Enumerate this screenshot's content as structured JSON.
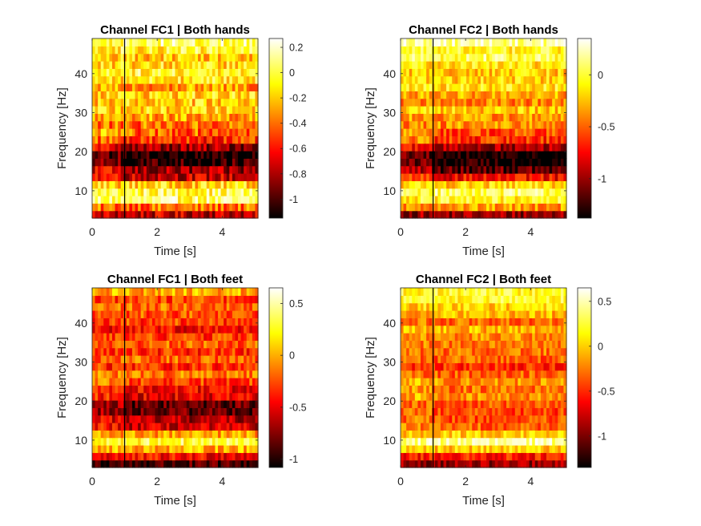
{
  "chart_data": [
    {
      "type": "heatmap",
      "title": "Channel FC1 | Both hands",
      "xlabel": "Time [s]",
      "ylabel": "Frequency [Hz]",
      "xlim": [
        0,
        5.1
      ],
      "ylim": [
        3,
        49
      ],
      "x_ticks": [
        "0",
        "2",
        "4"
      ],
      "y_ticks": [
        "10",
        "20",
        "30",
        "40"
      ],
      "colorbar_range": [
        -1.15,
        0.27
      ],
      "colorbar_ticks": [
        "0.2",
        "0",
        "-0.2",
        "-0.4",
        "-0.6",
        "-0.8",
        "-1"
      ],
      "colormap": "hot",
      "marker_line_x": 1.0,
      "freq_profile": [
        {
          "f": 4,
          "v": -0.8
        },
        {
          "f": 6,
          "v": -0.3
        },
        {
          "f": 8,
          "v": 0.0
        },
        {
          "f": 10,
          "v": 0.05
        },
        {
          "f": 12,
          "v": -0.3
        },
        {
          "f": 14,
          "v": -0.6
        },
        {
          "f": 16,
          "v": -0.65
        },
        {
          "f": 18,
          "v": -0.9
        },
        {
          "f": 20,
          "v": -0.95
        },
        {
          "f": 22,
          "v": -0.5
        },
        {
          "f": 26,
          "v": -0.3
        },
        {
          "f": 30,
          "v": -0.25
        },
        {
          "f": 34,
          "v": -0.2
        },
        {
          "f": 38,
          "v": -0.2
        },
        {
          "f": 42,
          "v": -0.1
        },
        {
          "f": 46,
          "v": -0.05
        },
        {
          "f": 48,
          "v": 0.0
        }
      ],
      "post_onset_drop": 0.15
    },
    {
      "type": "heatmap",
      "title": "Channel FC2 | Both hands",
      "xlabel": "Time [s]",
      "ylabel": "Frequency [Hz]",
      "xlim": [
        0,
        5.1
      ],
      "ylim": [
        3,
        49
      ],
      "x_ticks": [
        "0",
        "2",
        "4"
      ],
      "y_ticks": [
        "10",
        "20",
        "30",
        "40"
      ],
      "colorbar_range": [
        -1.38,
        0.35
      ],
      "colorbar_ticks": [
        "0",
        "-0.5",
        "-1"
      ],
      "colormap": "hot",
      "marker_line_x": 1.0,
      "freq_profile": [
        {
          "f": 4,
          "v": -0.9
        },
        {
          "f": 6,
          "v": -0.4
        },
        {
          "f": 8,
          "v": -0.1
        },
        {
          "f": 10,
          "v": 0.1
        },
        {
          "f": 12,
          "v": -0.4
        },
        {
          "f": 14,
          "v": -0.7
        },
        {
          "f": 16,
          "v": -1.0
        },
        {
          "f": 18,
          "v": -1.1
        },
        {
          "f": 20,
          "v": -1.1
        },
        {
          "f": 22,
          "v": -0.6
        },
        {
          "f": 26,
          "v": -0.4
        },
        {
          "f": 30,
          "v": -0.3
        },
        {
          "f": 34,
          "v": -0.3
        },
        {
          "f": 38,
          "v": -0.2
        },
        {
          "f": 42,
          "v": -0.15
        },
        {
          "f": 46,
          "v": 0.0
        },
        {
          "f": 48,
          "v": 0.1
        }
      ],
      "post_onset_drop": 0.2
    },
    {
      "type": "heatmap",
      "title": "Channel FC1 | Both feet",
      "xlabel": "Time [s]",
      "ylabel": "Frequency [Hz]",
      "xlim": [
        0,
        5.1
      ],
      "ylim": [
        3,
        49
      ],
      "x_ticks": [
        "0",
        "2",
        "4"
      ],
      "y_ticks": [
        "10",
        "20",
        "30",
        "40"
      ],
      "colorbar_range": [
        -1.08,
        0.65
      ],
      "colorbar_ticks": [
        "0.5",
        "0",
        "-0.5",
        "-1"
      ],
      "colormap": "hot",
      "marker_line_x": 1.0,
      "freq_profile": [
        {
          "f": 4,
          "v": -0.9
        },
        {
          "f": 6,
          "v": -0.4
        },
        {
          "f": 8,
          "v": 0.0
        },
        {
          "f": 10,
          "v": 0.3
        },
        {
          "f": 12,
          "v": 0.0
        },
        {
          "f": 14,
          "v": -0.5
        },
        {
          "f": 16,
          "v": -0.5
        },
        {
          "f": 18,
          "v": -0.7
        },
        {
          "f": 20,
          "v": -0.6
        },
        {
          "f": 22,
          "v": -0.3
        },
        {
          "f": 26,
          "v": -0.2
        },
        {
          "f": 30,
          "v": -0.3
        },
        {
          "f": 34,
          "v": -0.3
        },
        {
          "f": 38,
          "v": -0.4
        },
        {
          "f": 42,
          "v": -0.3
        },
        {
          "f": 46,
          "v": -0.2
        },
        {
          "f": 48,
          "v": -0.1
        }
      ],
      "post_onset_drop": 0.15
    },
    {
      "type": "heatmap",
      "title": "Channel FC2 | Both feet",
      "xlabel": "Time [s]",
      "ylabel": "Frequency [Hz]",
      "xlim": [
        0,
        5.1
      ],
      "ylim": [
        3,
        49
      ],
      "x_ticks": [
        "0",
        "2",
        "4"
      ],
      "y_ticks": [
        "10",
        "20",
        "30",
        "40"
      ],
      "colorbar_range": [
        -1.35,
        0.65
      ],
      "colorbar_ticks": [
        "0.5",
        "0",
        "-0.5",
        "-1"
      ],
      "colormap": "hot",
      "marker_line_x": 1.0,
      "freq_profile": [
        {
          "f": 4,
          "v": -1.0
        },
        {
          "f": 6,
          "v": -0.4
        },
        {
          "f": 8,
          "v": 0.0
        },
        {
          "f": 10,
          "v": 0.4
        },
        {
          "f": 12,
          "v": 0.0
        },
        {
          "f": 14,
          "v": -0.4
        },
        {
          "f": 16,
          "v": -0.3
        },
        {
          "f": 18,
          "v": -0.3
        },
        {
          "f": 20,
          "v": -0.2
        },
        {
          "f": 22,
          "v": -0.2
        },
        {
          "f": 26,
          "v": -0.2
        },
        {
          "f": 30,
          "v": -0.5
        },
        {
          "f": 34,
          "v": -0.3
        },
        {
          "f": 38,
          "v": -0.2
        },
        {
          "f": 42,
          "v": -0.2
        },
        {
          "f": 46,
          "v": 0.1
        },
        {
          "f": 48,
          "v": 0.1
        }
      ],
      "post_onset_drop": 0.1
    }
  ]
}
